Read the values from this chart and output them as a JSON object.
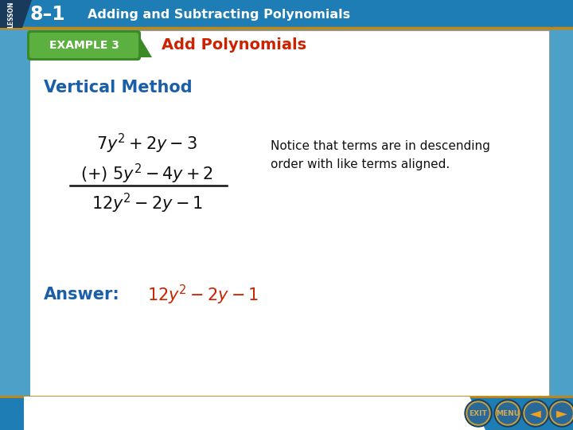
{
  "bg_outer": "#4da0c8",
  "bg_main": "#ffffff",
  "header_bg": "#1e7db5",
  "header_text": "Adding and Subtracting Polynomials",
  "header_number": "8–1",
  "header_text_color": "#ffffff",
  "header_accent_color": "#c8860a",
  "lesson_bg": "#1a3a5c",
  "lesson_label": "LESSON",
  "lesson_color": "#ffffff",
  "example_badge_color1": "#3a8a28",
  "example_badge_color2": "#5cb040",
  "example_badge_text": "EXAMPLE 3",
  "example_badge_text_color": "#ffffff",
  "example_title": "Add Polynomials",
  "example_title_color": "#cc2200",
  "section_title": "Vertical Method",
  "section_title_color": "#1a5fa8",
  "math_color": "#111111",
  "note_text": "Notice that terms are in descending\norder with like terms aligned.",
  "note_color": "#111111",
  "answer_label": "Answer:",
  "answer_label_color": "#1a5fa8",
  "answer_value_color": "#cc2200",
  "footer_bg": "#1e7db5",
  "footer_accent": "#c8860a",
  "btn_bg": "#2a6090",
  "btn_border": "#c8a040",
  "btn_arrow_color": "#f0a020"
}
